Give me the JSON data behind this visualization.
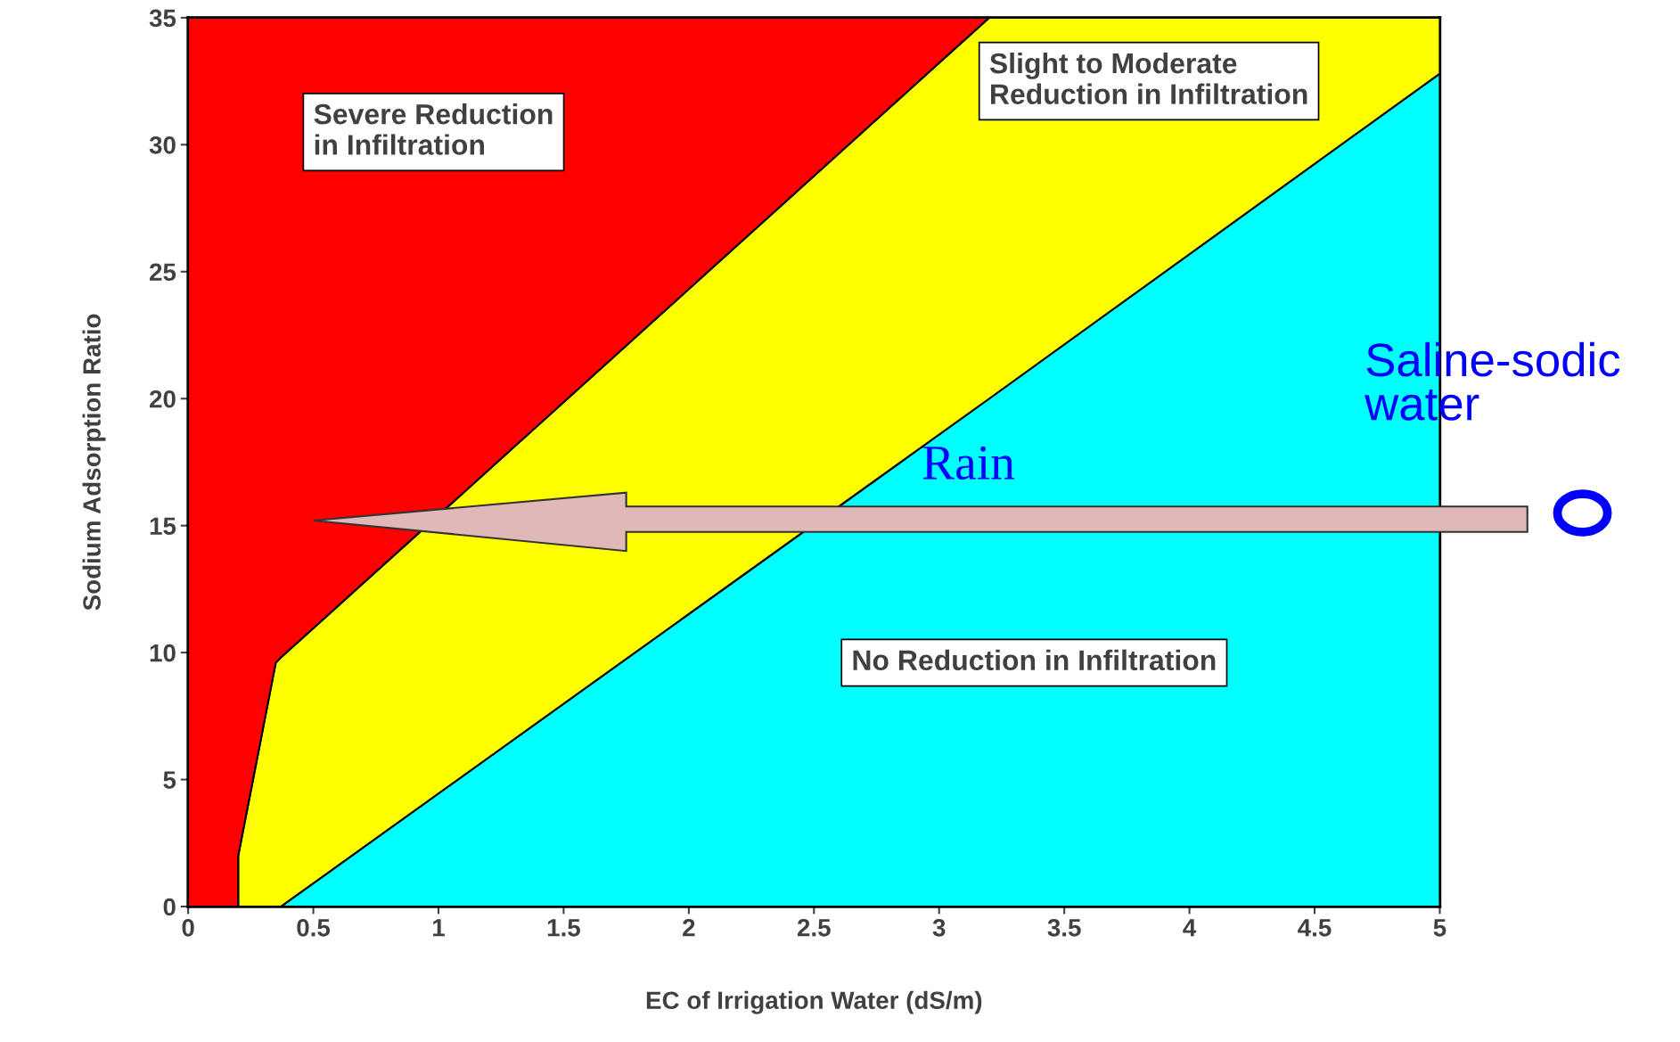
{
  "chart_data": {
    "type": "area",
    "stacked": true,
    "xlabel": "EC of Irrigation Water (dS/m)",
    "ylabel": "Sodium Adsorption Ratio",
    "x": [
      0,
      0.2,
      0.2,
      0.35,
      0.37,
      3.2,
      5
    ],
    "series": [
      {
        "name": "No Reduction in Infiltration",
        "color": "#00ffff",
        "values": [
          0,
          0,
          0,
          0,
          0,
          20.0,
          32.8
        ]
      },
      {
        "name": "Slight to Moderate\nReduction in Infiltration",
        "color": "#ffff00",
        "values": [
          0,
          0,
          2,
          9.6,
          9.8,
          15.0,
          2.2
        ]
      },
      {
        "name": "Severe Reduction\nin Infiltration",
        "color": "#ff0000",
        "values": [
          35,
          35,
          33,
          25.4,
          25.2,
          0,
          null
        ]
      }
    ],
    "xlim": [
      0,
      5
    ],
    "ylim": [
      0,
      35
    ],
    "xticks": [
      0,
      0.5,
      1,
      1.5,
      2,
      2.5,
      3,
      3.5,
      4,
      4.5,
      5
    ],
    "yticks": [
      0,
      5,
      10,
      15,
      20,
      25,
      30,
      35
    ],
    "legend": false,
    "annotations": [
      "Rain",
      "Saline-sodic\nwater"
    ]
  }
}
